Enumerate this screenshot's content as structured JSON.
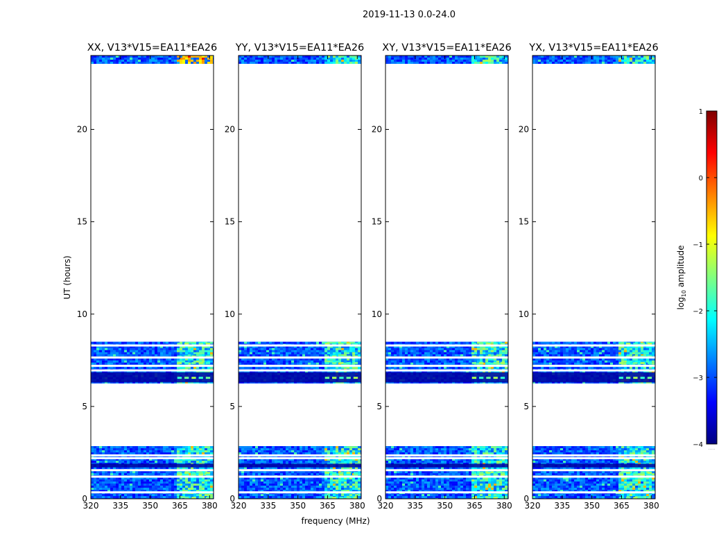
{
  "chart_data": {
    "type": "heatmap",
    "suptitle": "2019-11-13 0.0-24.0",
    "xlabel": "frequency (MHz)",
    "ylabel": "UT (hours)",
    "xlim": [
      320,
      382
    ],
    "ylim": [
      0,
      24
    ],
    "xticks": [
      320,
      335,
      350,
      365,
      380
    ],
    "yticks": [
      0,
      5,
      10,
      15,
      20
    ],
    "panels": [
      {
        "title": "XX, V13*V15=EA11*EA26"
      },
      {
        "title": "YY, V13*V15=EA11*EA26"
      },
      {
        "title": "XY, V13*V15=EA11*EA26"
      },
      {
        "title": "YX, V13*V15=EA11*EA26"
      }
    ],
    "data_blocks_ut_hours": [
      {
        "start": 0.0,
        "end": 2.85
      },
      {
        "start": 6.25,
        "end": 8.5
      },
      {
        "start": 23.55,
        "end": 24.0
      }
    ],
    "gap_ut_hours": [
      0.35,
      1.2,
      1.55,
      2.2,
      2.35,
      6.95,
      7.2,
      7.65,
      8.3
    ],
    "dark_bands_ut_hours": [
      [
        1.7,
        1.9
      ],
      [
        6.3,
        6.85
      ]
    ],
    "rfi_band_mhz": [
      363,
      381
    ],
    "colorbar": {
      "label": "log₁₀ amplitude",
      "label_base": "log",
      "label_sub": "10",
      "label_rest": " amplitude",
      "min": -4,
      "max": 1,
      "ticks": [
        -4,
        -3,
        -2,
        -1,
        0,
        1
      ],
      "tick_labels": [
        "−4",
        "−3",
        "−2",
        "−1",
        "0",
        "1"
      ],
      "colormap": "jet",
      "stops": [
        "#00007f",
        "#0000ff",
        "#0080ff",
        "#00ffff",
        "#80ff80",
        "#ffff00",
        "#ff8000",
        "#ff0000",
        "#7f0000"
      ],
      "footnote": "....."
    }
  }
}
